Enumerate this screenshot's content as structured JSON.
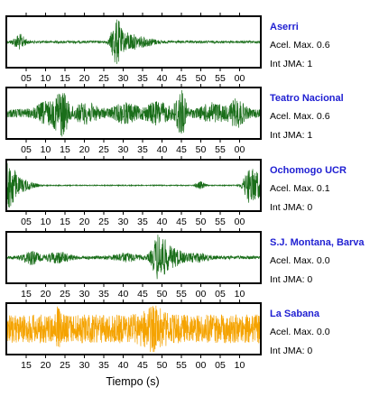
{
  "chart_data": {
    "type": "line",
    "xlabel": "Tiempo (s)",
    "acel_label": "Acel. Max.",
    "int_label": "Int JMA:",
    "panels": [
      {
        "station": "Aserri",
        "acel": "0.6",
        "int_jma": "1",
        "color": "#1a6e1a",
        "tick_labels": [
          "05",
          "10",
          "15",
          "20",
          "25",
          "30",
          "35",
          "40",
          "45",
          "50",
          "55",
          "00"
        ],
        "tick_start_second": 5,
        "noise": 0.05,
        "bursts": [
          {
            "t": 3.3,
            "amp": 0.3,
            "w": 1.5
          },
          {
            "t": 27.6,
            "amp": 1.0,
            "w": 1.2
          },
          {
            "t": 30.5,
            "amp": 0.35,
            "w": 2.5
          },
          {
            "t": 35.0,
            "amp": 0.15,
            "w": 3.0
          }
        ]
      },
      {
        "station": "Teatro Nacional",
        "acel": "0.6",
        "int_jma": "1",
        "color": "#1a6e1a",
        "tick_labels": [
          "05",
          "10",
          "15",
          "20",
          "25",
          "30",
          "35",
          "40",
          "45",
          "50",
          "55",
          "00"
        ],
        "tick_start_second": 5,
        "noise": 0.18,
        "bursts": [
          {
            "t": 10.0,
            "amp": 0.35,
            "w": 2.5
          },
          {
            "t": 13.8,
            "amp": 1.0,
            "w": 1.6
          },
          {
            "t": 20.0,
            "amp": 0.3,
            "w": 3.0
          },
          {
            "t": 30.0,
            "amp": 0.3,
            "w": 3.0
          },
          {
            "t": 38.0,
            "amp": 0.35,
            "w": 3.0
          },
          {
            "t": 43.8,
            "amp": 1.0,
            "w": 1.3
          },
          {
            "t": 52.0,
            "amp": 0.3,
            "w": 3.0
          },
          {
            "t": 58.0,
            "amp": 0.45,
            "w": 2.0
          }
        ]
      },
      {
        "station": "Ochomogo UCR",
        "acel": "0.1",
        "int_jma": "0",
        "color": "#1a6e1a",
        "tick_labels": [
          "05",
          "10",
          "15",
          "20",
          "25",
          "30",
          "35",
          "40",
          "45",
          "50",
          "55",
          "00"
        ],
        "tick_start_second": 5,
        "noise": 0.02,
        "bursts": [
          {
            "t": 0.8,
            "amp": 1.0,
            "w": 1.6
          },
          {
            "t": 4.0,
            "amp": 0.25,
            "w": 3.0
          },
          {
            "t": 48.8,
            "amp": 0.15,
            "w": 1.2
          },
          {
            "t": 61.0,
            "amp": 0.6,
            "w": 1.5
          },
          {
            "t": 63.2,
            "amp": 0.5,
            "w": 1.8
          }
        ]
      },
      {
        "station": "S.J. Montana, Barva",
        "acel": "0.0",
        "int_jma": "0",
        "color": "#1a6e1a",
        "tick_labels": [
          "15",
          "20",
          "25",
          "30",
          "35",
          "40",
          "45",
          "50",
          "55",
          "00",
          "05",
          "10"
        ],
        "tick_start_second": 15,
        "noise": 0.07,
        "bursts": [
          {
            "t": 6.2,
            "amp": 0.25,
            "w": 2.0
          },
          {
            "t": 13.0,
            "amp": 0.2,
            "w": 3.0
          },
          {
            "t": 30.0,
            "amp": 0.15,
            "w": 3.0
          },
          {
            "t": 38.5,
            "amp": 1.0,
            "w": 1.8
          },
          {
            "t": 42.0,
            "amp": 0.35,
            "w": 2.5
          },
          {
            "t": 48.0,
            "amp": 0.15,
            "w": 3.0
          }
        ]
      },
      {
        "station": "La Sabana",
        "acel": "0.0",
        "int_jma": "0",
        "color": "#f5a300",
        "tick_labels": [
          "15",
          "20",
          "25",
          "30",
          "35",
          "40",
          "45",
          "50",
          "55",
          "00",
          "05",
          "10"
        ],
        "tick_start_second": 15,
        "noise": 0.6,
        "bursts": [
          {
            "t": 13.0,
            "amp": 0.6,
            "w": 0.5
          },
          {
            "t": 37.0,
            "amp": 0.4,
            "w": 3.0
          }
        ]
      }
    ]
  }
}
